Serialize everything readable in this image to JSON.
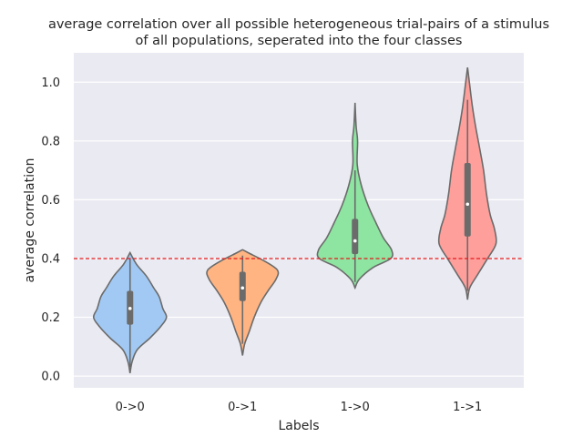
{
  "chart_data": {
    "type": "violin",
    "title": "average correlation over all possible heterogeneous trial-pairs of a stimulus",
    "subtitle": "of all populations, seperated into the four classes",
    "xlabel": "Labels",
    "ylabel": "average correlation",
    "ylim": [
      -0.04,
      1.1
    ],
    "yticks": [
      "0.0",
      "0.2",
      "0.4",
      "0.6",
      "0.8",
      "1.0"
    ],
    "yticks_values": [
      0.0,
      0.2,
      0.4,
      0.6,
      0.8,
      1.0
    ],
    "categories": [
      "0->0",
      "0->1",
      "1->0",
      "1->1"
    ],
    "reference_line": {
      "y": 0.4,
      "color": "#e41a1c",
      "style": "dashed"
    },
    "grid": true,
    "background_color": "#eaeaf2",
    "series": [
      {
        "category": "0->0",
        "color": "#a1c9f4",
        "min": 0.01,
        "max": 0.42,
        "q1": 0.175,
        "median": 0.23,
        "q3": 0.29,
        "whisker_low": 0.03,
        "whisker_high": 0.4,
        "density": [
          [
            0.01,
            0
          ],
          [
            0.05,
            0.06
          ],
          [
            0.09,
            0.2
          ],
          [
            0.13,
            0.55
          ],
          [
            0.17,
            0.85
          ],
          [
            0.2,
            1.0
          ],
          [
            0.23,
            0.9
          ],
          [
            0.27,
            0.8
          ],
          [
            0.3,
            0.65
          ],
          [
            0.34,
            0.45
          ],
          [
            0.38,
            0.18
          ],
          [
            0.42,
            0
          ]
        ]
      },
      {
        "category": "0->1",
        "color": "#ffb482",
        "min": 0.07,
        "max": 0.43,
        "q1": 0.255,
        "median": 0.3,
        "q3": 0.355,
        "whisker_low": 0.11,
        "whisker_high": 0.41,
        "density": [
          [
            0.07,
            0
          ],
          [
            0.11,
            0.06
          ],
          [
            0.15,
            0.18
          ],
          [
            0.2,
            0.32
          ],
          [
            0.25,
            0.5
          ],
          [
            0.29,
            0.7
          ],
          [
            0.33,
            0.92
          ],
          [
            0.36,
            0.96
          ],
          [
            0.39,
            0.62
          ],
          [
            0.42,
            0.15
          ],
          [
            0.43,
            0
          ]
        ]
      },
      {
        "category": "1->0",
        "color": "#8de5a1",
        "min": 0.3,
        "max": 0.93,
        "q1": 0.415,
        "median": 0.46,
        "q3": 0.535,
        "whisker_low": 0.32,
        "whisker_high": 0.7,
        "density": [
          [
            0.3,
            0
          ],
          [
            0.33,
            0.12
          ],
          [
            0.37,
            0.5
          ],
          [
            0.4,
            0.98
          ],
          [
            0.43,
            1.0
          ],
          [
            0.47,
            0.78
          ],
          [
            0.52,
            0.58
          ],
          [
            0.58,
            0.36
          ],
          [
            0.65,
            0.17
          ],
          [
            0.72,
            0.06
          ],
          [
            0.8,
            0.07
          ],
          [
            0.85,
            0.03
          ],
          [
            0.93,
            0
          ]
        ]
      },
      {
        "category": "1->1",
        "color": "#ff9f9b",
        "min": 0.26,
        "max": 1.05,
        "q1": 0.475,
        "median": 0.585,
        "q3": 0.725,
        "whisker_low": 0.29,
        "whisker_high": 0.94,
        "density": [
          [
            0.26,
            0
          ],
          [
            0.3,
            0.06
          ],
          [
            0.34,
            0.25
          ],
          [
            0.4,
            0.55
          ],
          [
            0.45,
            0.78
          ],
          [
            0.5,
            0.74
          ],
          [
            0.55,
            0.62
          ],
          [
            0.62,
            0.52
          ],
          [
            0.7,
            0.44
          ],
          [
            0.77,
            0.34
          ],
          [
            0.85,
            0.22
          ],
          [
            0.92,
            0.13
          ],
          [
            1.0,
            0.05
          ],
          [
            1.05,
            0
          ]
        ]
      }
    ]
  }
}
